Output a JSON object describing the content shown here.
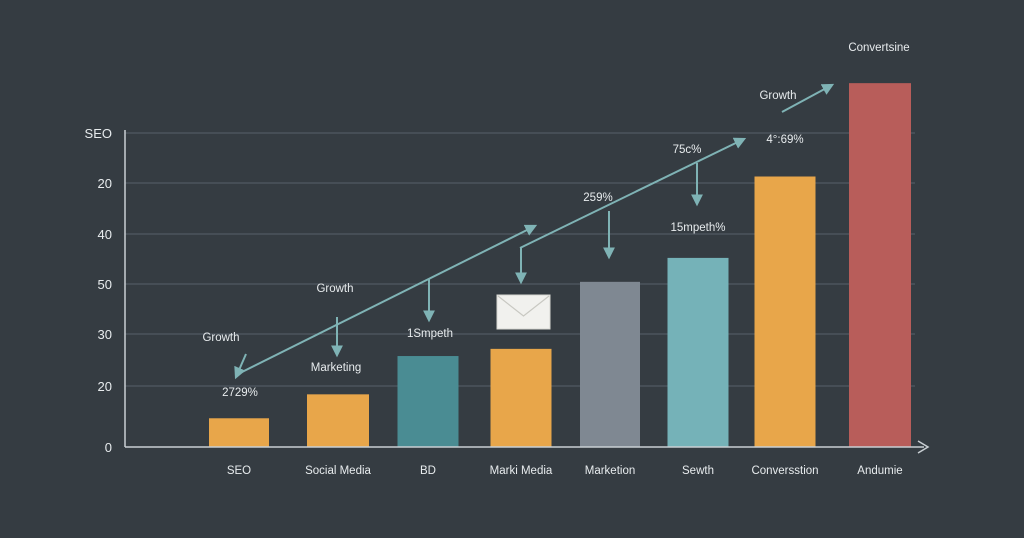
{
  "chart_data": {
    "type": "bar",
    "y_tick_labels": [
      "0",
      "20",
      "30",
      "50",
      "40",
      "20",
      "SEO"
    ],
    "categories": [
      "SEO",
      "Social Media",
      "BD",
      "Marki Media",
      "Marketion",
      "Sewth",
      "Conversstion",
      "Andumie"
    ],
    "values": [
      6,
      11,
      19,
      20.5,
      34.5,
      39.5,
      56.5,
      76
    ],
    "ylim": [
      0,
      80
    ],
    "grid": true,
    "bar_colors": [
      "#e8a64a",
      "#e8a64a",
      "#4a8c93",
      "#e8a64a",
      "#7f8892",
      "#75b2b8",
      "#e8a64a",
      "#b85d5a"
    ],
    "arrow_color": "#7fb3b5",
    "annotations": [
      {
        "text": "Convertsine"
      },
      {
        "text": "Growth"
      },
      {
        "text": "75c%"
      },
      {
        "text": "4°:69%"
      },
      {
        "text": "259%"
      },
      {
        "text": "15mpeth%"
      },
      {
        "text": "Growth"
      },
      {
        "text": "1Smpeth"
      },
      {
        "text": "Growth"
      },
      {
        "text": "Marketing"
      },
      {
        "text": "2729%"
      }
    ]
  }
}
